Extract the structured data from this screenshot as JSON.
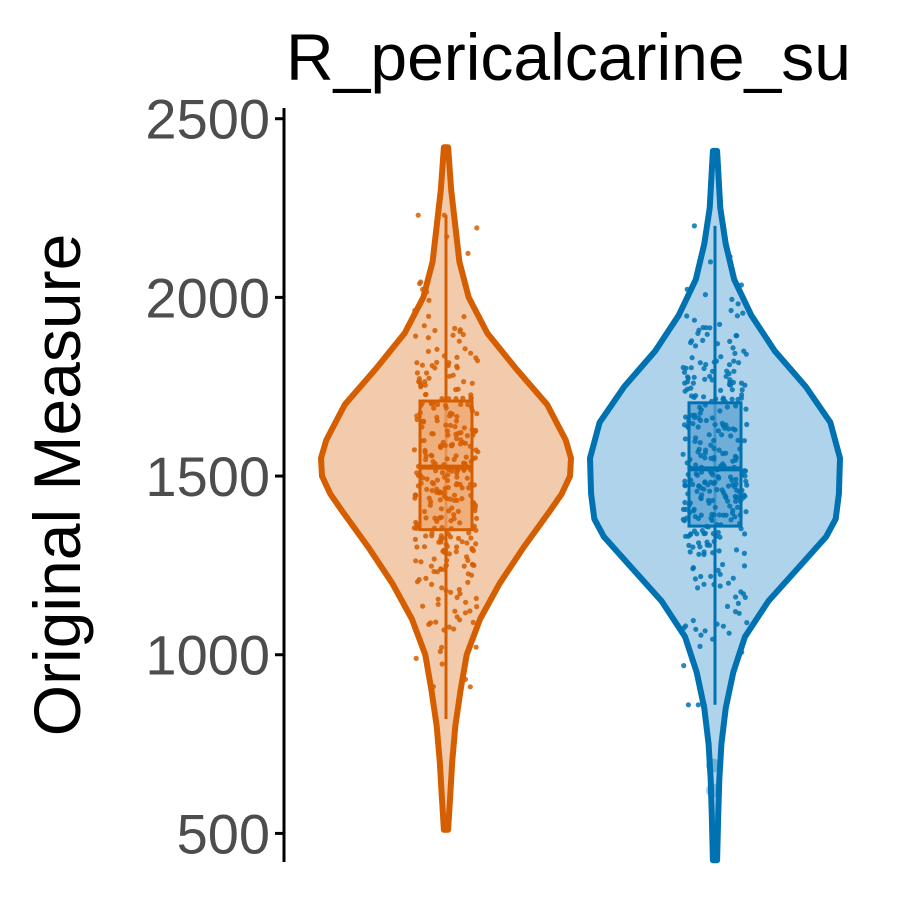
{
  "chart_data": {
    "type": "violin",
    "title": "R_pericalcarine_su",
    "ylabel": "Original Measure",
    "xlabel": "",
    "ylim": [
      420,
      2530
    ],
    "yticks": [
      500,
      1000,
      1500,
      2000,
      2500
    ],
    "grid": false,
    "legend": "none",
    "series": [
      {
        "color": "#D55E00",
        "fill": "#F2CBAD",
        "box_fill": "#EDA56D",
        "min": 510,
        "max": 2420,
        "q1": 1350,
        "median": 1525,
        "q3": 1710,
        "whisker_low": 820,
        "whisker_high": 2230,
        "density": [
          [
            510,
            2
          ],
          [
            600,
            4
          ],
          [
            700,
            6
          ],
          [
            800,
            9
          ],
          [
            900,
            14
          ],
          [
            1000,
            20
          ],
          [
            1100,
            33
          ],
          [
            1200,
            52
          ],
          [
            1300,
            75
          ],
          [
            1400,
            100
          ],
          [
            1450,
            112
          ],
          [
            1500,
            120
          ],
          [
            1550,
            121
          ],
          [
            1600,
            116
          ],
          [
            1700,
            98
          ],
          [
            1800,
            68
          ],
          [
            1900,
            40
          ],
          [
            2000,
            22
          ],
          [
            2100,
            13
          ],
          [
            2200,
            9
          ],
          [
            2300,
            5
          ],
          [
            2420,
            2
          ]
        ],
        "outliers": []
      },
      {
        "color": "#0072B2",
        "fill": "#AFD3EA",
        "box_fill": "#5AA2D2",
        "min": 425,
        "max": 2410,
        "q1": 1360,
        "median": 1520,
        "q3": 1705,
        "whisker_low": 860,
        "whisker_high": 2200,
        "density": [
          [
            425,
            2
          ],
          [
            550,
            3
          ],
          [
            650,
            4
          ],
          [
            750,
            6
          ],
          [
            850,
            10
          ],
          [
            950,
            17
          ],
          [
            1050,
            28
          ],
          [
            1150,
            50
          ],
          [
            1250,
            80
          ],
          [
            1330,
            104
          ],
          [
            1380,
            113
          ],
          [
            1450,
            116
          ],
          [
            1550,
            117
          ],
          [
            1650,
            108
          ],
          [
            1750,
            85
          ],
          [
            1850,
            56
          ],
          [
            1950,
            34
          ],
          [
            2050,
            18
          ],
          [
            2150,
            10
          ],
          [
            2250,
            5
          ],
          [
            2410,
            2
          ]
        ],
        "outliers": [
          690,
          620
        ]
      }
    ]
  }
}
